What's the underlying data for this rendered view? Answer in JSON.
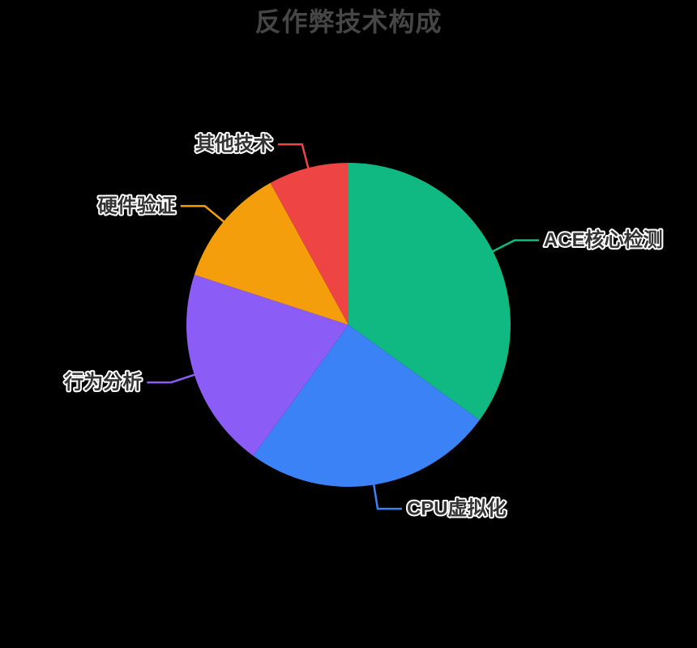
{
  "chart": {
    "background": "#000000",
    "title_color": "#464646",
    "label_color": "#333333",
    "label_outline_color": "#ffffff"
  },
  "chart_data": {
    "type": "pie",
    "title": "反作弊技术构成",
    "series": [
      {
        "name": "ACE核心检测",
        "value": 35,
        "color": "#10b981"
      },
      {
        "name": "CPU虚拟化",
        "value": 25,
        "color": "#3b82f6"
      },
      {
        "name": "行为分析",
        "value": 20,
        "color": "#8b5cf6"
      },
      {
        "name": "硬件验证",
        "value": 12,
        "color": "#f59e0b"
      },
      {
        "name": "其他技术",
        "value": 8,
        "color": "#ef4444"
      }
    ],
    "start_angle_deg": 0,
    "clockwise": true,
    "label_position": "outside",
    "legend": "none",
    "unit": "percent"
  }
}
